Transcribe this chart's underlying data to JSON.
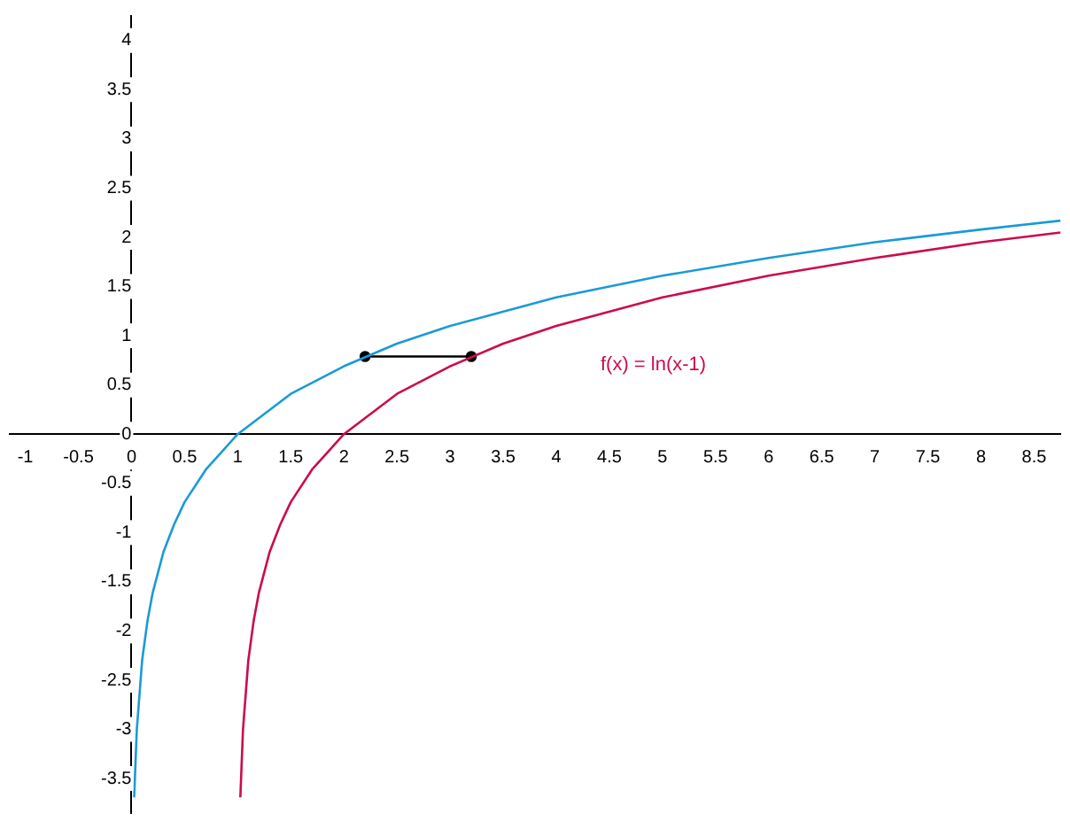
{
  "chart_data": {
    "type": "line",
    "xlim": [
      -1.15,
      8.75
    ],
    "ylim": [
      -3.85,
      4.25
    ],
    "xticks": [
      -1,
      -0.5,
      0,
      0.5,
      1,
      1.5,
      2,
      2.5,
      3,
      3.5,
      4,
      4.5,
      5,
      5.5,
      6,
      6.5,
      7,
      7.5,
      8,
      8.5
    ],
    "yticks": [
      -3.5,
      -3,
      -2.5,
      -2,
      -1.5,
      -1,
      -0.5,
      0,
      0.5,
      1,
      1.5,
      2,
      2.5,
      3,
      3.5,
      4
    ],
    "grid": false,
    "legend": false,
    "marker": "none",
    "line_style": "solid",
    "series": [
      {
        "color": "#1a9ad6",
        "x": [
          0.025,
          0.05,
          0.1,
          0.15,
          0.2,
          0.3,
          0.4,
          0.5,
          0.7,
          1,
          1.5,
          2,
          2.5,
          3,
          4,
          5,
          6,
          7,
          8,
          8.75
        ],
        "values": [
          -3.69,
          -3.0,
          -2.3,
          -1.9,
          -1.61,
          -1.2,
          -0.92,
          -0.69,
          -0.36,
          0,
          0.41,
          0.69,
          0.92,
          1.1,
          1.39,
          1.61,
          1.79,
          1.95,
          2.08,
          2.17
        ]
      },
      {
        "name": "f(x) = ln(x-1)",
        "color": "#cc0a50",
        "x": [
          1.025,
          1.05,
          1.1,
          1.15,
          1.2,
          1.3,
          1.4,
          1.5,
          1.7,
          2,
          2.5,
          3,
          3.5,
          4,
          5,
          6,
          7,
          8,
          8.75
        ],
        "values": [
          -3.69,
          -3.0,
          -2.3,
          -1.9,
          -1.61,
          -1.2,
          -0.92,
          -0.69,
          -0.36,
          0,
          0.41,
          0.69,
          0.92,
          1.1,
          1.39,
          1.61,
          1.79,
          1.95,
          2.05
        ]
      },
      {
        "color": "#000000",
        "marker": "circle",
        "x": [
          2.2,
          3.2
        ],
        "values": [
          0.79,
          0.79
        ]
      }
    ]
  }
}
